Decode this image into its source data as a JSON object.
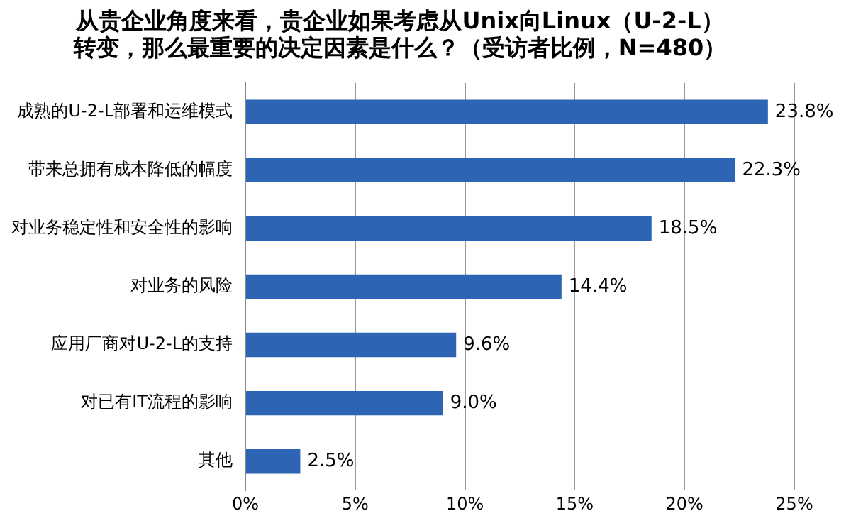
{
  "chart_data": {
    "type": "bar",
    "orientation": "horizontal",
    "title": "从贵企业角度来看，贵企业如果考虑从Unix向Linux（U-2-L）转变，那么最重要的决定因素是什么？（受访者比例，N=480）",
    "categories": [
      "成熟的U-2-L部署和运维模式",
      "带来总拥有成本降低的幅度",
      "对业务稳定性和安全性的影响",
      "对业务的风险",
      "应用厂商对U-2-L的支持",
      "对已有IT流程的影响",
      "其他"
    ],
    "values": [
      23.8,
      22.3,
      18.5,
      14.4,
      9.6,
      9.0,
      2.5
    ],
    "value_labels": [
      "23.8%",
      "22.3%",
      "18.5%",
      "14.4%",
      "9.6%",
      "9.0%",
      "2.5%"
    ],
    "color": "#2e64b4",
    "xlim": [
      0,
      25
    ],
    "xticks": [
      {
        "value": 0,
        "label": "0%"
      },
      {
        "value": 5,
        "label": "5%"
      },
      {
        "value": 10,
        "label": "10%"
      },
      {
        "value": 15,
        "label": "15%"
      },
      {
        "value": 20,
        "label": "20%"
      },
      {
        "value": 25,
        "label": "25%"
      }
    ],
    "grid": "x",
    "legend": false
  }
}
